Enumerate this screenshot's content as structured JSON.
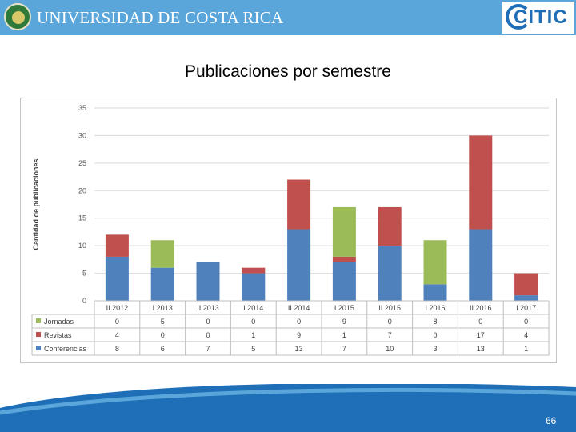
{
  "header": {
    "university": "UNIVERSIDAD DE COSTA RICA",
    "logo": "CITIC"
  },
  "slide": {
    "title": "Publicaciones por semestre",
    "page_number": "66"
  },
  "colors": {
    "header": "#5aa6da",
    "jornadas": "#9bbb59",
    "revistas": "#c0504d",
    "conferencias": "#4f81bd"
  },
  "chart_data": {
    "type": "bar",
    "stacked": true,
    "title": "",
    "xlabel": "",
    "ylabel": "Cantidad de publicaciones",
    "ylim": [
      0,
      35
    ],
    "yticks": [
      "0",
      "5",
      "10",
      "15",
      "20",
      "25",
      "30",
      "35"
    ],
    "grid": true,
    "legend": "data-table",
    "categories": [
      "II 2012",
      "I 2013",
      "II 2013",
      "I 2014",
      "II 2014",
      "I 2015",
      "II 2015",
      "I 2016",
      "II 2016",
      "I 2017"
    ],
    "series": [
      {
        "name": "Jornadas",
        "color": "#9bbb59",
        "values": [
          0,
          5,
          0,
          0,
          0,
          9,
          0,
          8,
          0,
          0
        ]
      },
      {
        "name": "Revistas",
        "color": "#c0504d",
        "values": [
          4,
          0,
          0,
          1,
          9,
          1,
          7,
          0,
          17,
          4
        ]
      },
      {
        "name": "Conferencias",
        "color": "#4f81bd",
        "values": [
          8,
          6,
          7,
          5,
          13,
          7,
          10,
          3,
          13,
          1
        ]
      }
    ]
  }
}
